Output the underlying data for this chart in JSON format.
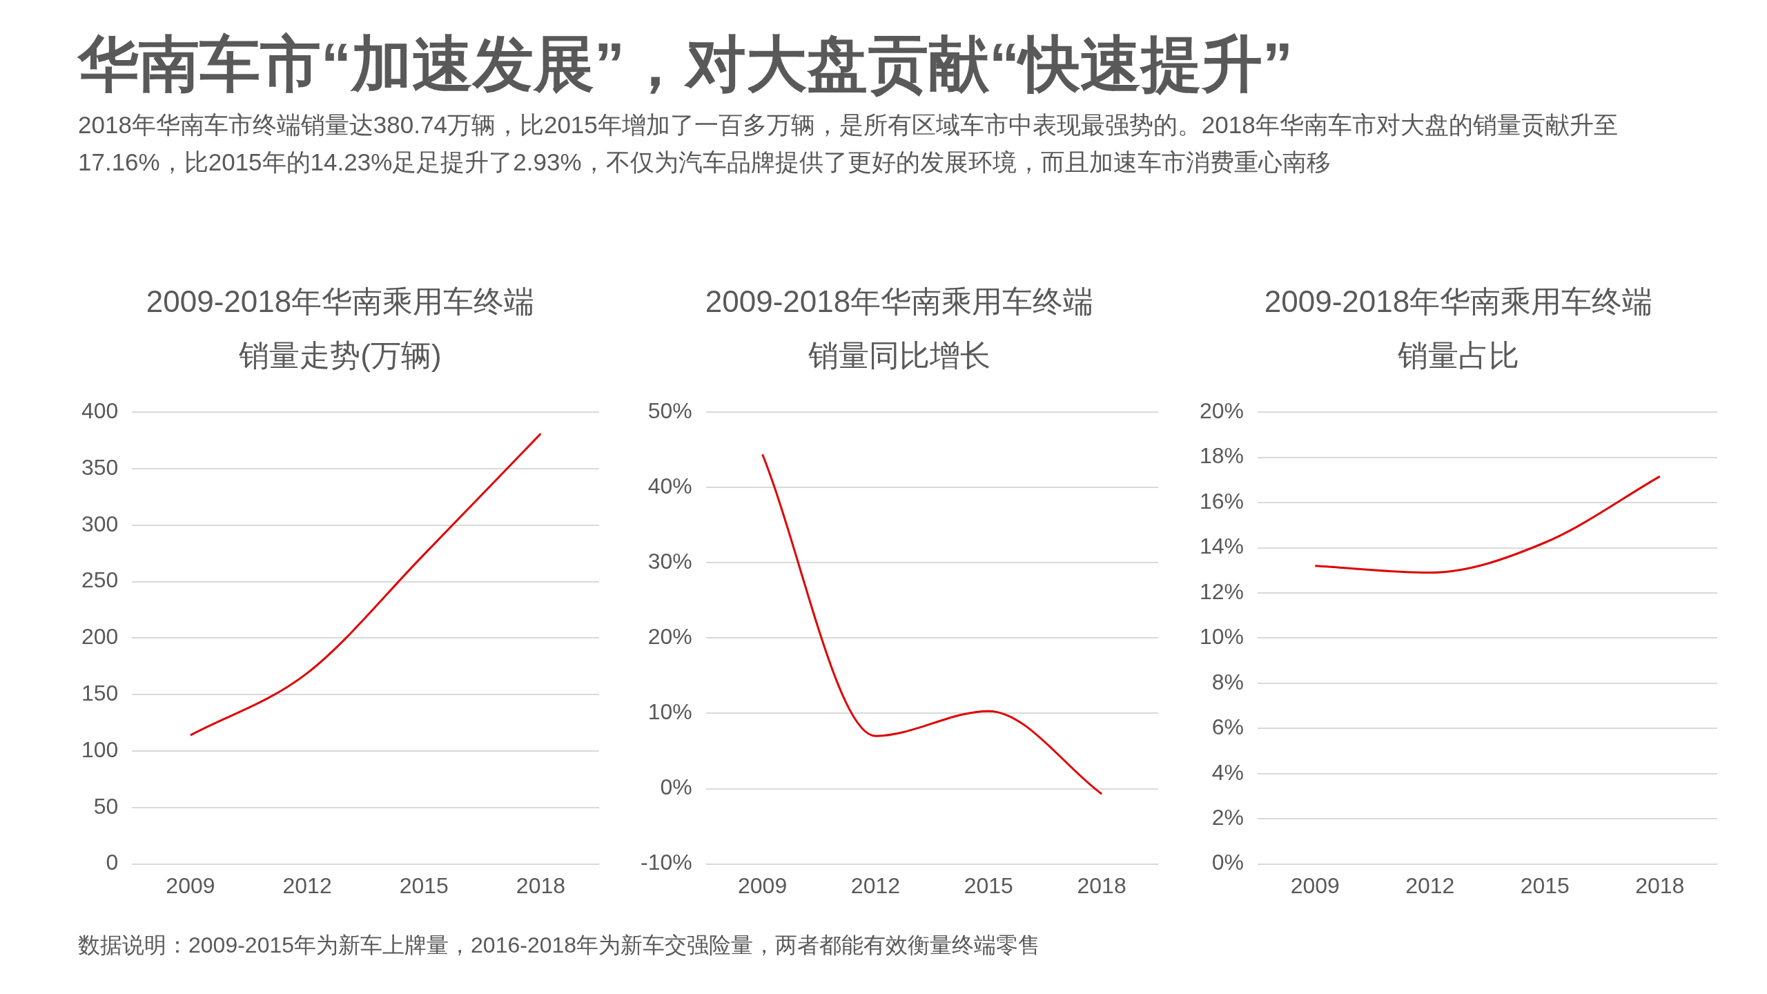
{
  "chart_data": [
    {
      "type": "other",
      "title": "华南车市“加速发展”，对大盘贡献“快速提升”",
      "subtitle": "2018年华南车市终端销量达380.74万辆，比2015年增加了一百多万辆，是所有区域车市中表现最强势的。2018年华南车市对大盘的销量贡献升至17.16%，比2015年的14.23%足足提升了2.93%，不仅为汽车品牌提供了更好的发展环境，而且加速车市消费重心南移",
      "annotations": [
        "数据说明：2009-2015年为新车上牌量，2016-2018年为新车交强险量，两者都能有效衡量终端零售"
      ]
    },
    {
      "type": "line",
      "title": "2009-2018年华南乘用车终端销量走势(万辆)",
      "categories": [
        "2009",
        "2012",
        "2015",
        "2018"
      ],
      "series": [
        {
          "color": "#e00000",
          "values": [
            114,
            169,
            274,
            381
          ]
        }
      ],
      "ylim": [
        0,
        400
      ],
      "yticks": [
        0,
        50,
        100,
        150,
        200,
        250,
        300,
        350,
        400
      ],
      "grid": "y",
      "marker": "none",
      "legend": false
    },
    {
      "type": "line",
      "title": "2009-2018年华南乘用车终端销量同比增长",
      "categories": [
        "2009",
        "2012",
        "2015",
        "2018"
      ],
      "series": [
        {
          "color": "#e00000",
          "values": [
            44.4,
            7,
            10.3,
            -0.7
          ]
        }
      ],
      "ylim": [
        -10,
        50
      ],
      "yticks": [
        {
          "value": -10,
          "label": "-10%"
        },
        {
          "value": 0,
          "label": "0%"
        },
        {
          "value": 10,
          "label": "10%"
        },
        {
          "value": 20,
          "label": "20%"
        },
        {
          "value": 30,
          "label": "30%"
        },
        {
          "value": 40,
          "label": "40%"
        },
        {
          "value": 50,
          "label": "50%"
        }
      ],
      "grid": "y",
      "marker": "none",
      "legend": false
    },
    {
      "type": "line",
      "title": "2009-2018年华南乘用车终端销量占比",
      "categories": [
        "2009",
        "2012",
        "2015",
        "2018"
      ],
      "series": [
        {
          "color": "#e00000",
          "values": [
            13.2,
            12.9,
            14.23,
            17.16
          ]
        }
      ],
      "ylim": [
        0,
        20
      ],
      "yticks": [
        {
          "value": 0,
          "label": "0%"
        },
        {
          "value": 2,
          "label": "2%"
        },
        {
          "value": 4,
          "label": "4%"
        },
        {
          "value": 6,
          "label": "6%"
        },
        {
          "value": 8,
          "label": "8%"
        },
        {
          "value": 10,
          "label": "10%"
        },
        {
          "value": 12,
          "label": "12%"
        },
        {
          "value": 14,
          "label": "14%"
        },
        {
          "value": 16,
          "label": "16%"
        },
        {
          "value": 18,
          "label": "18%"
        },
        {
          "value": 20,
          "label": "20%"
        }
      ],
      "grid": "y",
      "marker": "none",
      "legend": false
    }
  ]
}
